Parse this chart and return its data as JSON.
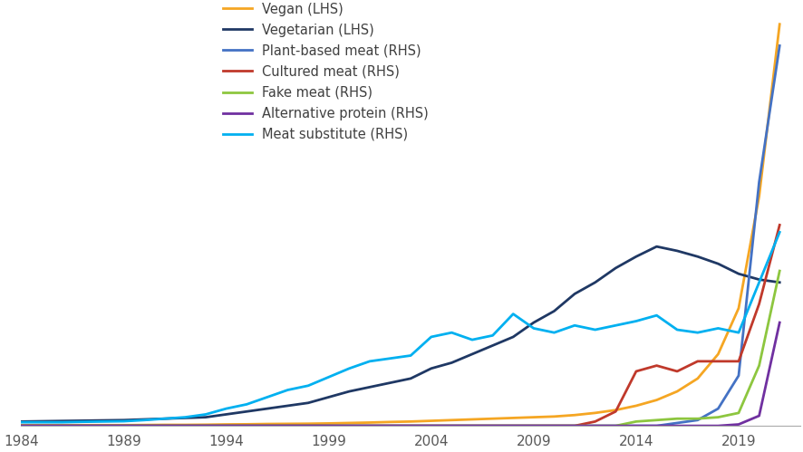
{
  "years": [
    1984,
    1985,
    1986,
    1987,
    1988,
    1989,
    1990,
    1991,
    1992,
    1993,
    1994,
    1995,
    1996,
    1997,
    1998,
    1999,
    2000,
    2001,
    2002,
    2003,
    2004,
    2005,
    2006,
    2007,
    2008,
    2009,
    2010,
    2011,
    2012,
    2013,
    2014,
    2015,
    2016,
    2017,
    2018,
    2019,
    2020,
    2021
  ],
  "series": [
    {
      "label": "Vegan (LHS)",
      "color": "#F5A623",
      "values": [
        0.5,
        0.5,
        0.5,
        0.5,
        0.5,
        0.5,
        0.6,
        0.7,
        0.7,
        0.8,
        1.0,
        1.1,
        1.3,
        1.4,
        1.5,
        1.7,
        2.0,
        2.3,
        2.7,
        3.0,
        3.5,
        4.0,
        4.5,
        5.0,
        5.5,
        6.0,
        6.5,
        7.5,
        9.0,
        11.0,
        14.0,
        18.0,
        24.0,
        33.0,
        50.0,
        82.0,
        160.0,
        280.0
      ]
    },
    {
      "label": "Vegetarian (LHS)",
      "color": "#1F3864",
      "values": [
        3.0,
        3.2,
        3.4,
        3.6,
        3.8,
        4.0,
        4.5,
        5.0,
        5.5,
        6.0,
        8.0,
        10.0,
        12.0,
        14.0,
        16.0,
        20.0,
        24.0,
        27.0,
        30.0,
        33.0,
        40.0,
        44.0,
        50.0,
        56.0,
        62.0,
        72.0,
        80.0,
        92.0,
        100.0,
        110.0,
        118.0,
        125.0,
        122.0,
        118.0,
        113.0,
        106.0,
        102.0,
        100.0
      ]
    },
    {
      "label": "Plant-based meat (RHS)",
      "color": "#4472C4",
      "values": [
        0,
        0,
        0,
        0,
        0,
        0,
        0,
        0,
        0,
        0,
        0,
        0,
        0,
        0,
        0,
        0,
        0,
        0,
        0,
        0,
        0,
        0,
        0,
        0,
        0,
        0,
        0,
        0,
        0,
        0,
        0,
        0,
        2,
        4,
        12,
        35,
        170,
        265
      ]
    },
    {
      "label": "Cultured meat (RHS)",
      "color": "#C0392B",
      "values": [
        0,
        0,
        0,
        0,
        0,
        0,
        0,
        0,
        0,
        0,
        0,
        0,
        0,
        0,
        0,
        0,
        0,
        0,
        0,
        0,
        0,
        0,
        0,
        0,
        0,
        0,
        0,
        0,
        3,
        10,
        38,
        42,
        38,
        45,
        45,
        45,
        85,
        140
      ]
    },
    {
      "label": "Fake meat (RHS)",
      "color": "#8DC63F",
      "values": [
        0,
        0,
        0,
        0,
        0,
        0,
        0,
        0,
        0,
        0,
        0,
        0,
        0,
        0,
        0,
        0,
        0,
        0,
        0,
        0,
        0,
        0,
        0,
        0,
        0,
        0,
        0,
        0,
        0,
        0,
        3,
        4,
        5,
        5,
        6,
        9,
        42,
        108
      ]
    },
    {
      "label": "Alternative protein (RHS)",
      "color": "#7030A0",
      "values": [
        0,
        0,
        0,
        0,
        0,
        0,
        0,
        0,
        0,
        0,
        0,
        0,
        0,
        0,
        0,
        0,
        0,
        0,
        0,
        0,
        0,
        0,
        0,
        0,
        0,
        0,
        0,
        0,
        0,
        0,
        0,
        0,
        0,
        0,
        0,
        1,
        7,
        72
      ]
    },
    {
      "label": "Meat substitute (RHS)",
      "color": "#00B0F0",
      "values": [
        2.5,
        2.5,
        2.5,
        2.8,
        3.0,
        3.2,
        4.0,
        5.0,
        6.0,
        8.0,
        12.0,
        15.0,
        20.0,
        25.0,
        28.0,
        34.0,
        40.0,
        45.0,
        47.0,
        49.0,
        62.0,
        65.0,
        60.0,
        63.0,
        78.0,
        68.0,
        65.0,
        70.0,
        67.0,
        70.0,
        73.0,
        77.0,
        67.0,
        65.0,
        68.0,
        65.0,
        100.0,
        135.0
      ]
    }
  ],
  "xticks": [
    1984,
    1989,
    1994,
    1999,
    2004,
    2009,
    2014,
    2019
  ],
  "background_color": "#FFFFFF",
  "line_width": 2.0,
  "legend_entries": [
    "Vegan (LHS)",
    "Vegetarian (LHS)",
    "Plant-based meat (RHS)",
    "Cultured meat (RHS)",
    "Fake meat (RHS)",
    "Alternative protein (RHS)",
    "Meat substitute (RHS)"
  ]
}
